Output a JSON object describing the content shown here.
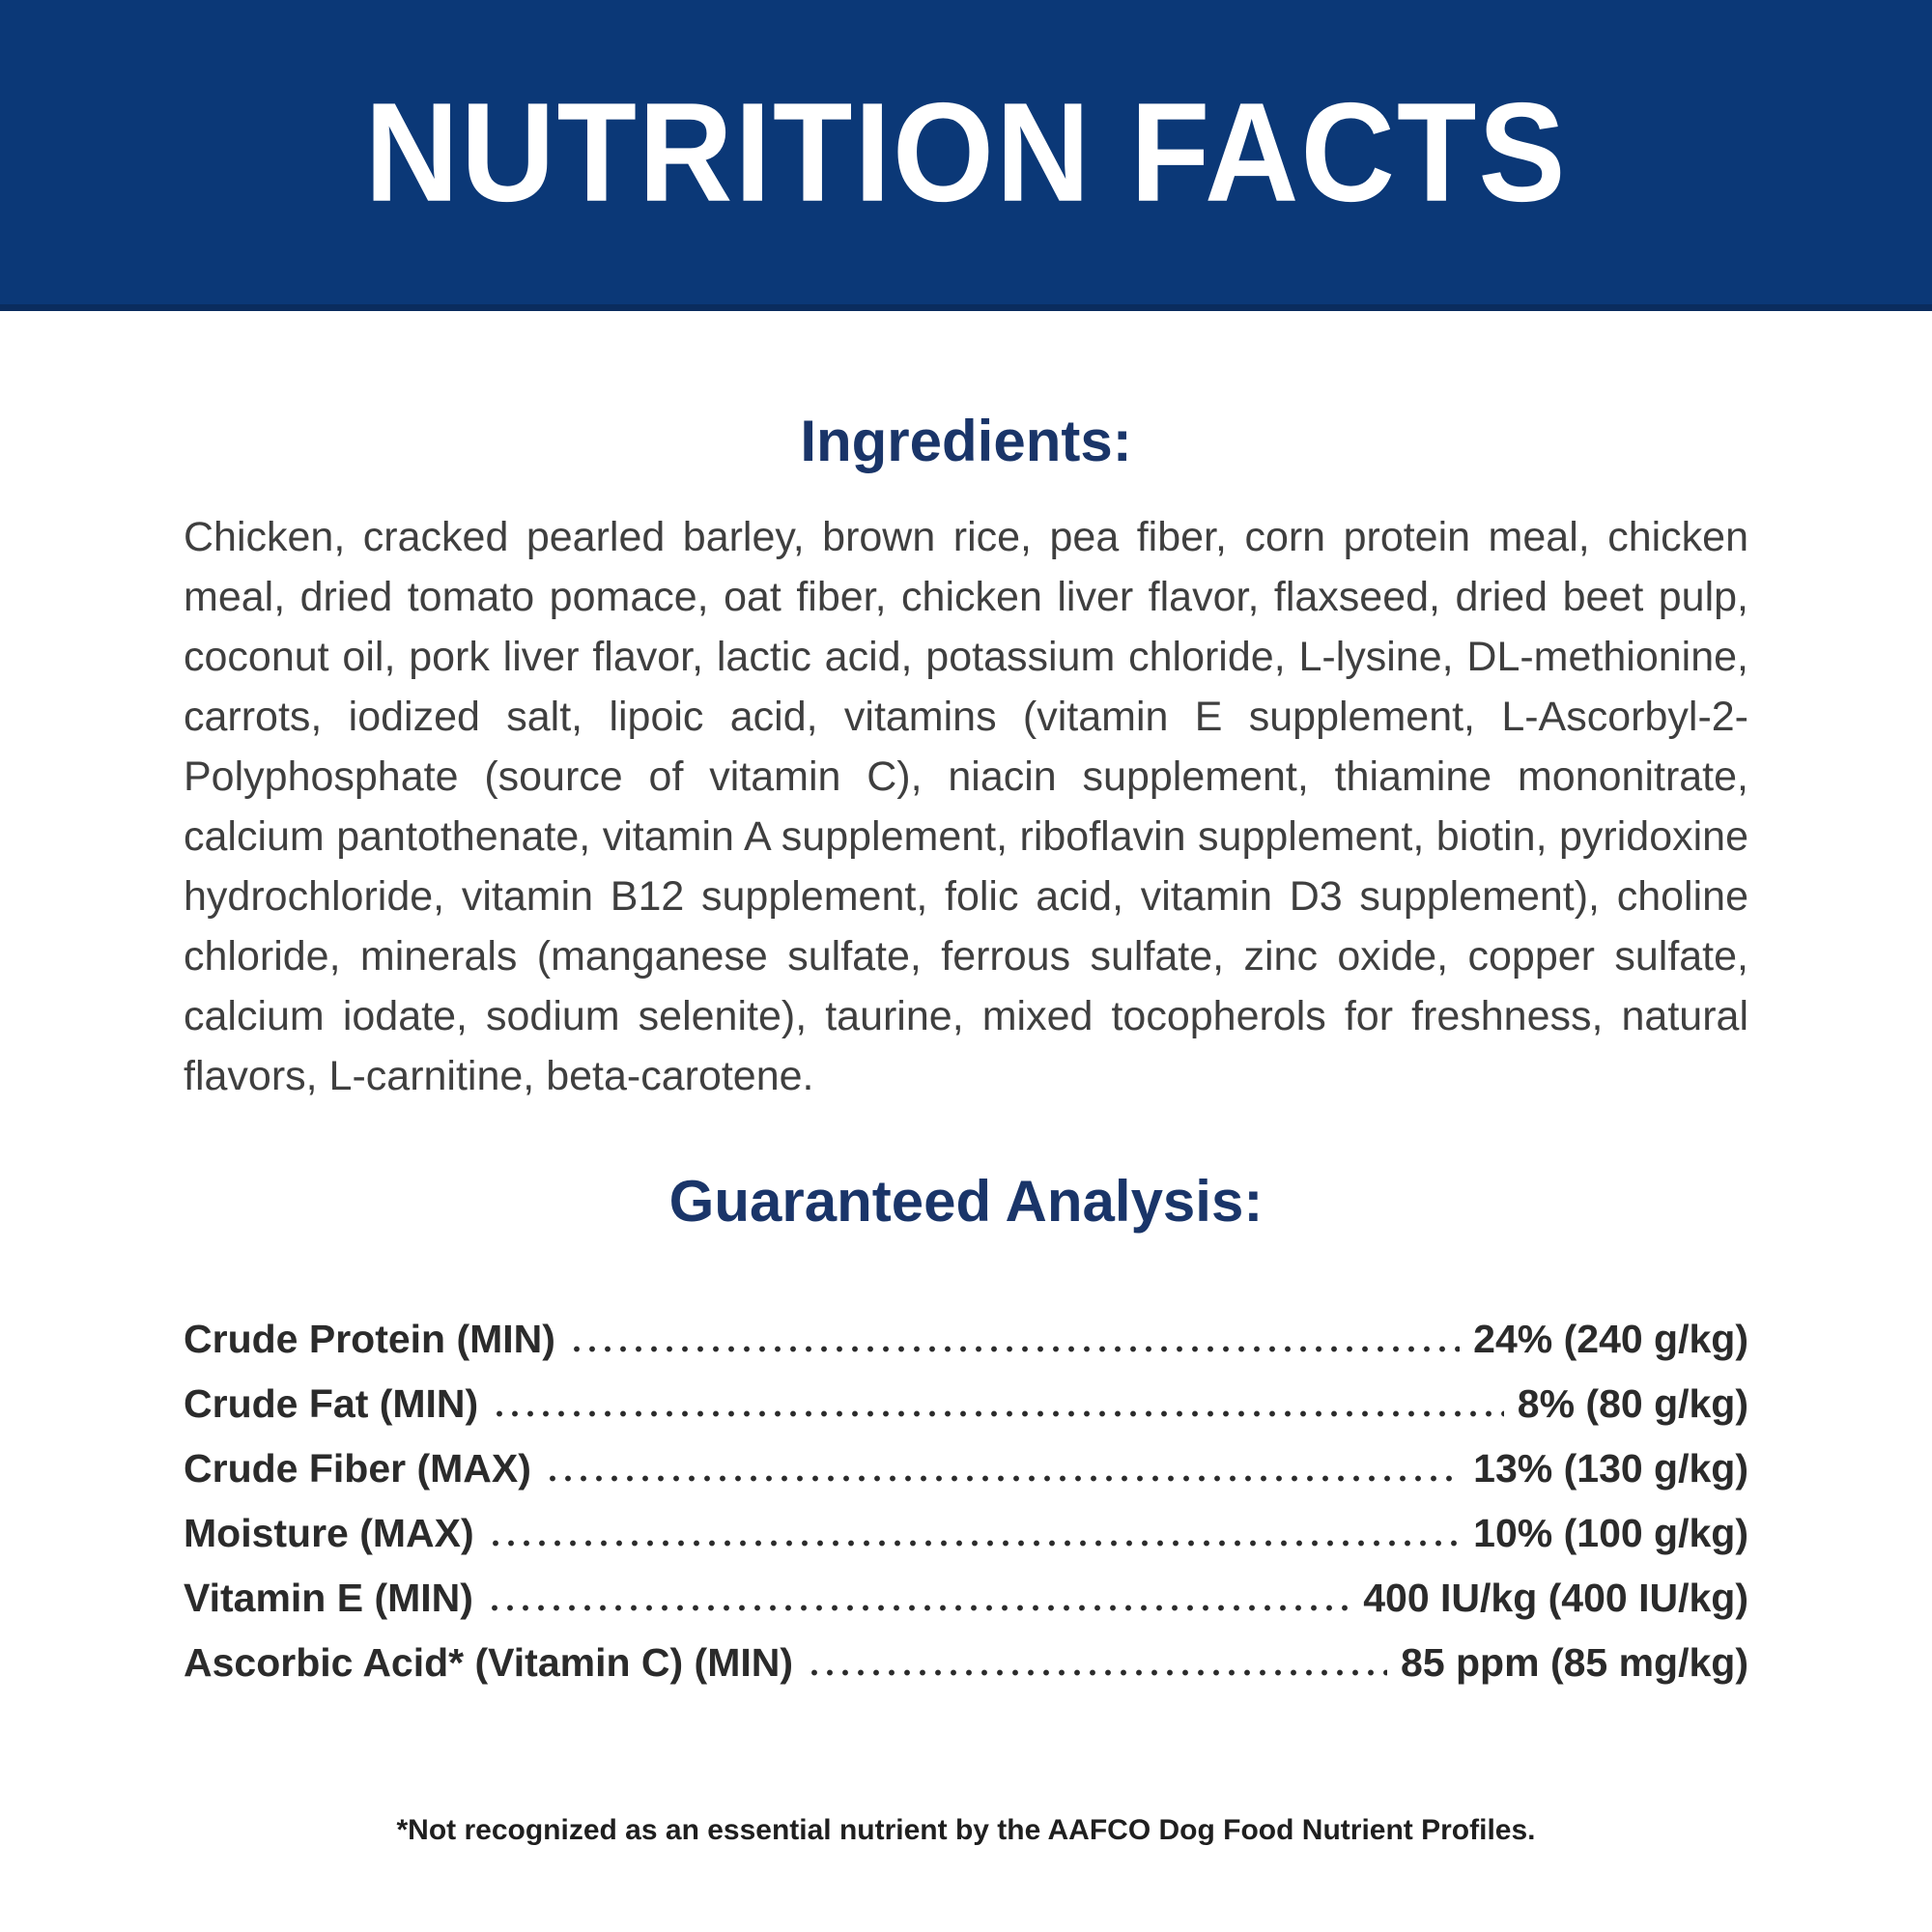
{
  "banner": {
    "title": "NUTRITION FACTS"
  },
  "ingredients": {
    "heading": "Ingredients:",
    "text": "Chicken, cracked pearled barley, brown rice, pea fiber, corn protein meal, chicken meal, dried tomato pomace, oat fiber, chicken liver flavor, flaxseed, dried beet pulp, coconut oil, pork liver flavor, lactic acid, potassium chloride, L-lysine, DL-methionine, carrots, iodized salt, lipoic acid, vitamins (vitamin E supplement, L-Ascorbyl-2-Polyphosphate (source of vitamin C), niacin supplement, thiamine mononitrate, calcium pantothenate, vitamin A supplement, riboflavin supplement, biotin, pyridoxine hydrochloride, vitamin B12 supplement, folic acid, vitamin D3 supplement), choline chloride, minerals (manganese sulfate, ferrous sulfate, zinc oxide, copper sulfate, calcium iodate, sodium selenite), taurine, mixed tocopherols for freshness, natural flavors, L-carnitine, beta-carotene."
  },
  "analysis": {
    "heading": "Guaranteed Analysis:",
    "rows": [
      {
        "label": "Crude Protein (MIN)",
        "value": "24% (240 g/kg)"
      },
      {
        "label": "Crude Fat (MIN)",
        "value": "8% (80 g/kg)"
      },
      {
        "label": "Crude Fiber (MAX)",
        "value": "13% (130 g/kg)"
      },
      {
        "label": "Moisture (MAX)",
        "value": "10% (100 g/kg)"
      },
      {
        "label": "Vitamin E (MIN)",
        "value": "400 IU/kg (400 IU/kg)"
      },
      {
        "label": "Ascorbic Acid* (Vitamin C) (MIN)",
        "value": "85 ppm (85 mg/kg)"
      }
    ]
  },
  "footnote": "*Not recognized as an essential nutrient by the AAFCO Dog Food Nutrient Profiles.",
  "colors": {
    "banner": "#0b3877",
    "banner_edge": "#0a2c5e",
    "heading": "#1a3569",
    "body_text": "#3f3f3f",
    "row_text": "#2b2b2b",
    "footnote_text": "#1f1f1f"
  }
}
